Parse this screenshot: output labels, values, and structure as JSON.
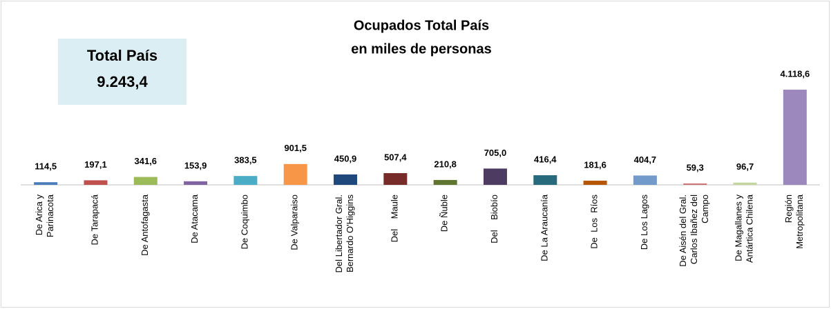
{
  "chart_data": {
    "type": "bar",
    "title": [
      "Ocupados Total País",
      "en miles de personas"
    ],
    "annotation": [
      "Total País",
      "9.243,4"
    ],
    "categories": [
      "De Arica y\nParinacota",
      "De Tarapacá",
      "De Antofagasta",
      "De Atacama",
      "De Coquimbo",
      "De Valparaiso",
      "Del Libertador Gral.\nBernardo O'Higgins",
      "Del    Maule",
      "De Ñuble",
      "Del    Biobío",
      "De La Araucanía",
      "De  Los  Ríos",
      "De Los Lagos",
      "De Aisén del Gral.\nCarlos Ibañez del\nCampo",
      "De Magallanes y\nAntártica Chilena",
      "Región\nMetropolitana"
    ],
    "values": [
      114.5,
      197.1,
      341.6,
      153.9,
      383.5,
      901.5,
      450.9,
      507.4,
      210.8,
      705.0,
      416.4,
      181.6,
      404.7,
      59.3,
      96.7,
      4118.6
    ],
    "value_labels": [
      "114,5",
      "197,1",
      "341,6",
      "153,9",
      "383,5",
      "901,5",
      "450,9",
      "507,4",
      "210,8",
      "705,0",
      "416,4",
      "181,6",
      "404,7",
      "59,3",
      "96,7",
      "4.118,6"
    ],
    "colors": [
      "#4a7ebb",
      "#c0504d",
      "#9bbb59",
      "#8064a2",
      "#4bacc6",
      "#f79646",
      "#1f497d",
      "#772c2a",
      "#5f7530",
      "#4d3b62",
      "#276a7c",
      "#b65708",
      "#729aca",
      "#cd7371",
      "#c3d69b",
      "#9c88bc"
    ]
  }
}
